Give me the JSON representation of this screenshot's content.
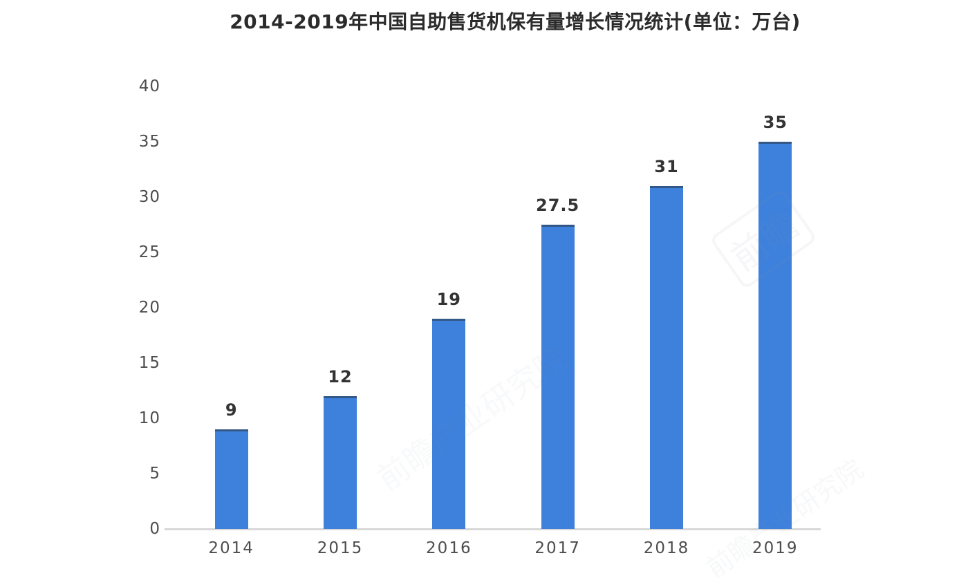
{
  "title": "2014-2019年中国自助售货机保有量增长情况统计(单位：万台)",
  "chart_data": {
    "type": "bar",
    "title": "2014-2019年中国自助售货机保有量增长情况统计(单位：万台)",
    "categories": [
      "2014",
      "2015",
      "2016",
      "2017",
      "2018",
      "2019"
    ],
    "values": [
      9,
      12,
      19,
      27.5,
      31,
      35
    ],
    "data_labels": [
      "9",
      "12",
      "19",
      "27.5",
      "31",
      "35"
    ],
    "xlabel": "",
    "ylabel": "",
    "ylim": [
      0,
      40
    ],
    "y_ticks": [
      0,
      5,
      10,
      15,
      20,
      25,
      30,
      35,
      40
    ],
    "grid": false,
    "legend": false,
    "unit": "万台",
    "colors": {
      "bar": "#3E81DC",
      "axis_line": "#d8d8d8",
      "tick_label": "#4d4d4d",
      "value_label": "#333333",
      "title": "#2b2b2b",
      "background": "#ffffff"
    }
  },
  "watermark": {
    "logo_text": "前瞻",
    "text": "前瞻产业研究院"
  }
}
